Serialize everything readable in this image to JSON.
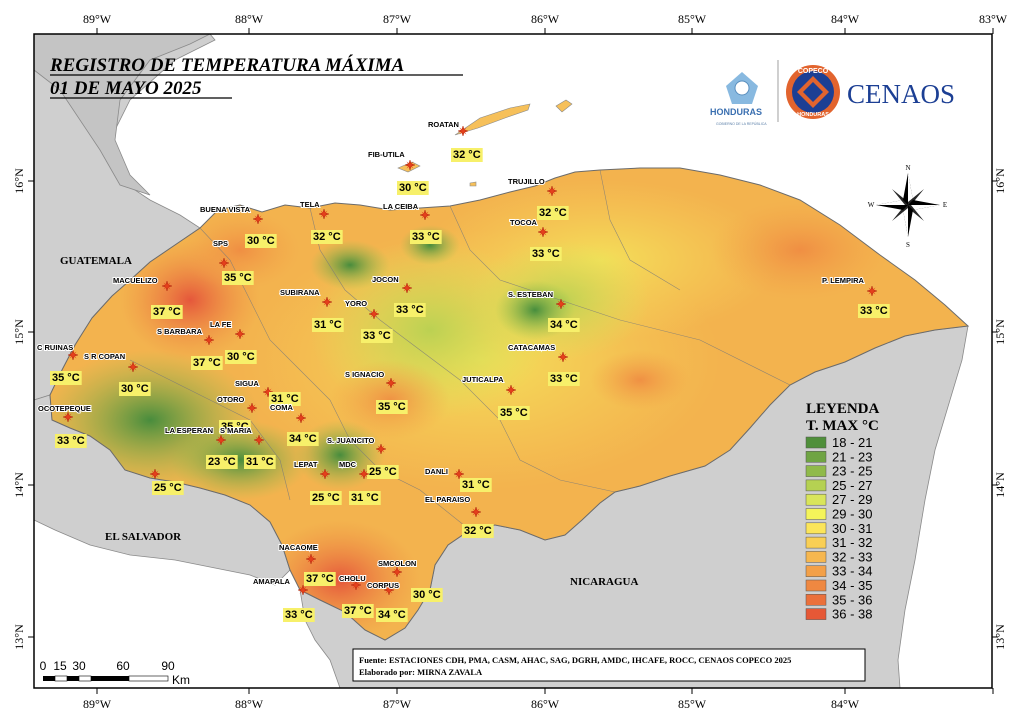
{
  "title_line1": "REGISTRO DE TEMPERATURA MÁXIMA",
  "title_line2": "01 DE MAYO 2025",
  "logos": {
    "honduras": "HONDURAS",
    "honduras_sub": "GOBIERNO DE LA REPÚBLICA",
    "copeco_top": "COPECO",
    "copeco_bottom": "HONDURAS",
    "cenaos": "CENAOS"
  },
  "graticule": {
    "lon_labels": [
      "89°W",
      "88°W",
      "87°W",
      "86°W",
      "85°W",
      "84°W",
      "83°W"
    ],
    "lat_labels": [
      "16°N",
      "15°N",
      "14°N",
      "13°N"
    ]
  },
  "countries": {
    "guatemala": "GUATEMALA",
    "el_salvador": "EL SALVADOR",
    "nicaragua": "NICARAGUA"
  },
  "compass": {
    "n": "N",
    "s": "S",
    "e": "E",
    "w": "W"
  },
  "legend": {
    "title1": "LEYENDA",
    "title2": "T. MAX °C",
    "classes": [
      {
        "label": "18 - 21",
        "color": "#4f8f3a"
      },
      {
        "label": "21 - 23",
        "color": "#6fa443"
      },
      {
        "label": "23 - 25",
        "color": "#90ba4a"
      },
      {
        "label": "25 - 27",
        "color": "#b5d152"
      },
      {
        "label": "27 - 29",
        "color": "#d9e55a"
      },
      {
        "label": "29 - 30",
        "color": "#f4f45a"
      },
      {
        "label": "30 - 31",
        "color": "#fbe55a"
      },
      {
        "label": "31 - 32",
        "color": "#f9cf55"
      },
      {
        "label": "32 - 33",
        "color": "#f6b74f"
      },
      {
        "label": "33 - 34",
        "color": "#f3a048"
      },
      {
        "label": "34 - 35",
        "color": "#ef8841"
      },
      {
        "label": "35 - 36",
        "color": "#eb703b"
      },
      {
        "label": "36 - 38",
        "color": "#e65836"
      }
    ]
  },
  "stations": [
    {
      "name": "ROATAN",
      "value": "32 °C"
    },
    {
      "name": "FIB-UTILA",
      "value": "30 °C"
    },
    {
      "name": "TRUJILLO",
      "value": "32 °C"
    },
    {
      "name": "BUENA VISTA",
      "value": "30 °C"
    },
    {
      "name": "TELA",
      "value": "32 °C"
    },
    {
      "name": "LA CEIBA",
      "value": "33 °C"
    },
    {
      "name": "TOCOA",
      "value": "33 °C"
    },
    {
      "name": "SPS",
      "value": "35 °C"
    },
    {
      "name": "MACUELIZO",
      "value": "37 °C"
    },
    {
      "name": "JOCON",
      "value": "33 °C"
    },
    {
      "name": "SUBIRANA",
      "value": "31 °C"
    },
    {
      "name": "YORO",
      "value": "33 °C"
    },
    {
      "name": "S. ESTEBAN",
      "value": "34 °C"
    },
    {
      "name": "P. LEMPIRA",
      "value": "33 °C"
    },
    {
      "name": "S BARBARA",
      "value": "37 °C"
    },
    {
      "name": "LA FE",
      "value": "30 °C"
    },
    {
      "name": "C RUINAS",
      "value": "35 °C"
    },
    {
      "name": "S R COPAN",
      "value": "30 °C"
    },
    {
      "name": "CATACAMAS",
      "value": "33 °C"
    },
    {
      "name": "SIGUA",
      "value": "31 °C"
    },
    {
      "name": "S IGNACIO",
      "value": "35 °C"
    },
    {
      "name": "JUTICALPA",
      "value": "35 °C"
    },
    {
      "name": "OTORO",
      "value": "35 °C"
    },
    {
      "name": "COMA",
      "value": "34 °C"
    },
    {
      "name": "OCOTEPEQUE",
      "value": "33 °C"
    },
    {
      "name": "LA ESPERAN",
      "value": "23 °C"
    },
    {
      "name": "S MARIA",
      "value": "31 °C"
    },
    {
      "name": "S. JUANCITO",
      "value": "25 °C"
    },
    {
      "name": "LEPAT",
      "value": "25 °C"
    },
    {
      "name": "MDC",
      "value": "31 °C"
    },
    {
      "name": "DANLI",
      "value": "31 °C"
    },
    {
      "name": "",
      "value": "25 °C"
    },
    {
      "name": "EL PARAISO",
      "value": "32 °C"
    },
    {
      "name": "NACAOME",
      "value": "37 °C"
    },
    {
      "name": "SMCOLON",
      "value": "30 °C"
    },
    {
      "name": "AMAPALA",
      "value": "33 °C"
    },
    {
      "name": "CHOLU",
      "value": "37 °C"
    },
    {
      "name": "CORPUS",
      "value": "34 °C"
    }
  ],
  "source_line1": "Fuente: ESTACIONES CDH, PMA, CASM, AHAC, SAG, DGRH, AMDC, IHCAFE, ROCC, CENAOS COPECO 2025",
  "source_line2": "Elaborado por: MIRNA ZAVALA",
  "scale": {
    "ticks": [
      "0",
      "15",
      "30",
      "60",
      "90"
    ],
    "unit": "Km"
  }
}
